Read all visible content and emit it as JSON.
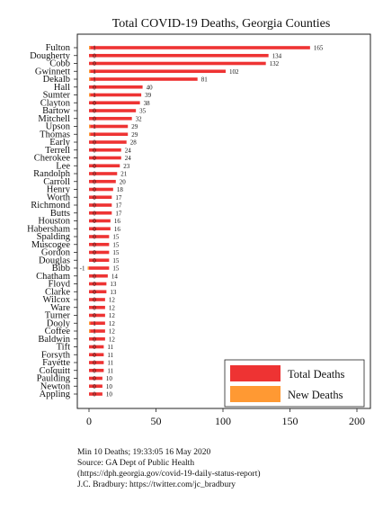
{
  "chart_data": {
    "type": "bar",
    "orientation": "horizontal",
    "title": "Total COVID-19 Deaths, Georgia Counties",
    "categories": [
      "Fulton",
      "Dougherty",
      "Cobb",
      "Gwinnett",
      "Dekalb",
      "Hall",
      "Sumter",
      "Clayton",
      "Bartow",
      "Mitchell",
      "Upson",
      "Thomas",
      "Early",
      "Terrell",
      "Cherokee",
      "Lee",
      "Randolph",
      "Carroll",
      "Henry",
      "Worth",
      "Richmond",
      "Butts",
      "Houston",
      "Habersham",
      "Spalding",
      "Muscogee",
      "Gordon",
      "Douglas",
      "Bibb",
      "Chatham",
      "Floyd",
      "Clarke",
      "Wilcox",
      "Ware",
      "Turner",
      "Dooly",
      "Coffee",
      "Baldwin",
      "Tift",
      "Forsyth",
      "Fayette",
      "Colquitt",
      "Paulding",
      "Newton",
      "Appling"
    ],
    "series": [
      {
        "name": "Total Deaths",
        "color": "#ee3333",
        "values": [
          165,
          134,
          132,
          102,
          81,
          40,
          39,
          38,
          35,
          32,
          29,
          29,
          28,
          24,
          24,
          23,
          21,
          20,
          18,
          17,
          17,
          17,
          16,
          16,
          15,
          15,
          15,
          15,
          15,
          14,
          13,
          13,
          12,
          12,
          12,
          12,
          12,
          12,
          11,
          11,
          11,
          11,
          10,
          10,
          10
        ]
      },
      {
        "name": "New Deaths",
        "color": "#ff9933",
        "values": [
          1,
          0,
          0,
          1,
          1,
          0,
          1,
          0,
          0,
          0,
          1,
          1,
          0,
          0,
          0,
          0,
          0,
          0,
          0,
          0,
          0,
          0,
          0,
          0,
          0,
          0,
          0,
          0,
          -1,
          0,
          0,
          0,
          0,
          0,
          0,
          1,
          1,
          0,
          0,
          0,
          0,
          0,
          0,
          0,
          0
        ]
      }
    ],
    "xlim": [
      0,
      200
    ],
    "xticks": [
      0,
      50,
      100,
      150,
      200
    ],
    "grid": false,
    "legend_position": "bottom-right"
  },
  "notes": [
    "Min 10 Deaths; 19:33:05  16 May 2020",
    "Source: GA Dept of Public Health",
    "(https://dph.georgia.gov/covid-19-daily-status-report)",
    "J.C. Bradbury: https://twitter.com/jc_bradbury"
  ]
}
